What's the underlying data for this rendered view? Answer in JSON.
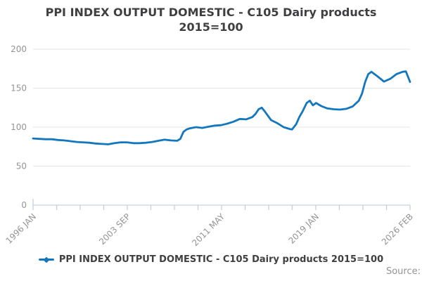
{
  "title": {
    "line1": "PPI INDEX OUTPUT DOMESTIC - C105 Dairy products",
    "line2": "2015=100"
  },
  "legend": {
    "label": "PPI INDEX OUTPUT DOMESTIC - C105 Dairy products 2015=100"
  },
  "source_label": "Source:",
  "colors": {
    "line": "#1377be",
    "grid": "#e3e3e3",
    "axis": "#c6cfdf",
    "tick_text": "#949494",
    "title_text": "#3f3f42"
  },
  "chart_data": {
    "type": "line",
    "title": "PPI INDEX OUTPUT DOMESTIC - C105 Dairy products 2015=100",
    "xlabel": "",
    "ylabel": "",
    "ylim": [
      0,
      200
    ],
    "y_ticks": [
      0,
      50,
      100,
      150,
      200
    ],
    "grid": "horizontal",
    "legend_position": "bottom",
    "x_minor_tick_count": 17,
    "x_label_every": 4,
    "x_tick_labels": [
      "1996 JAN",
      "2003 SEP",
      "2011 MAY",
      "2019 JAN",
      "2026 FEB"
    ],
    "series": [
      {
        "name": "PPI INDEX OUTPUT DOMESTIC - C105 Dairy products 2015=100",
        "points": [
          [
            "1996-01",
            85.5
          ],
          [
            "1996-07",
            85
          ],
          [
            "1997-01",
            84.5
          ],
          [
            "1997-07",
            84.5
          ],
          [
            "1998-01",
            83.5
          ],
          [
            "1998-07",
            83
          ],
          [
            "1999-01",
            82
          ],
          [
            "1999-07",
            81
          ],
          [
            "2000-01",
            80.5
          ],
          [
            "2000-07",
            80
          ],
          [
            "2001-01",
            79
          ],
          [
            "2001-07",
            78.5
          ],
          [
            "2002-01",
            78
          ],
          [
            "2002-07",
            79.5
          ],
          [
            "2003-01",
            80.5
          ],
          [
            "2003-07",
            80.5
          ],
          [
            "2004-01",
            79.5
          ],
          [
            "2004-07",
            79.5
          ],
          [
            "2005-01",
            80
          ],
          [
            "2005-07",
            81
          ],
          [
            "2006-01",
            82.5
          ],
          [
            "2006-07",
            84
          ],
          [
            "2007-01",
            83
          ],
          [
            "2007-07",
            82.5
          ],
          [
            "2007-10",
            85
          ],
          [
            "2008-01",
            94
          ],
          [
            "2008-04",
            97
          ],
          [
            "2008-07",
            98.5
          ],
          [
            "2009-01",
            100
          ],
          [
            "2009-07",
            99
          ],
          [
            "2010-01",
            100.5
          ],
          [
            "2010-07",
            102
          ],
          [
            "2011-01",
            102.5
          ],
          [
            "2011-07",
            104.5
          ],
          [
            "2012-01",
            107
          ],
          [
            "2012-07",
            110.5
          ],
          [
            "2013-01",
            110
          ],
          [
            "2013-07",
            113
          ],
          [
            "2013-10",
            117
          ],
          [
            "2014-01",
            123
          ],
          [
            "2014-04",
            125
          ],
          [
            "2014-07",
            120
          ],
          [
            "2015-01",
            109
          ],
          [
            "2015-07",
            105
          ],
          [
            "2016-01",
            100
          ],
          [
            "2016-07",
            97.5
          ],
          [
            "2016-09",
            97
          ],
          [
            "2017-01",
            104
          ],
          [
            "2017-04",
            113
          ],
          [
            "2017-07",
            120
          ],
          [
            "2017-11",
            131
          ],
          [
            "2018-02",
            134
          ],
          [
            "2018-05",
            128
          ],
          [
            "2018-08",
            131
          ],
          [
            "2019-01",
            127
          ],
          [
            "2019-07",
            124
          ],
          [
            "2020-01",
            123
          ],
          [
            "2020-07",
            122.5
          ],
          [
            "2021-01",
            123.5
          ],
          [
            "2021-07",
            126.5
          ],
          [
            "2022-01",
            134
          ],
          [
            "2022-04",
            143
          ],
          [
            "2022-07",
            158
          ],
          [
            "2022-10",
            168
          ],
          [
            "2023-01",
            171
          ],
          [
            "2023-07",
            165
          ],
          [
            "2024-01",
            158.5
          ],
          [
            "2024-07",
            162
          ],
          [
            "2025-01",
            168
          ],
          [
            "2025-07",
            171
          ],
          [
            "2025-10",
            171.5
          ],
          [
            "2026-02",
            158
          ]
        ]
      }
    ]
  }
}
